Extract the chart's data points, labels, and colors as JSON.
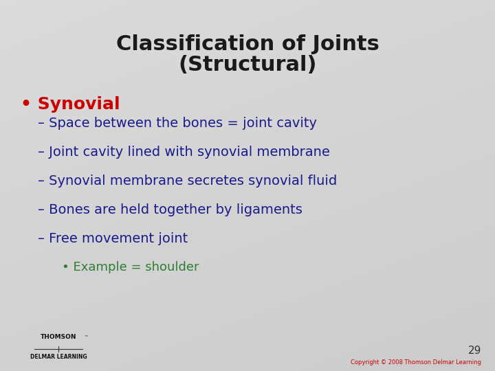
{
  "title_line1": "Classification of Joints",
  "title_line2": "(Structural)",
  "title_color": "#1a1a1a",
  "title_fontsize": 22,
  "background_color": "#d4d4d4",
  "bullet_main": "Synovial",
  "bullet_main_color": "#cc0000",
  "bullet_main_fontsize": 18,
  "sub_bullets": [
    "– Space between the bones = joint cavity",
    "– Joint cavity lined with synovial membrane",
    "– Synovial membrane secretes synovial fluid",
    "– Bones are held together by ligaments",
    "– Free movement joint"
  ],
  "sub_bullet_color": "#1a1a8c",
  "sub_bullet_fontsize": 14,
  "sub_sub_bullet": "• Example = shoulder",
  "sub_sub_color": "#2e7d32",
  "sub_sub_fontsize": 13,
  "page_number": "29",
  "page_number_color": "#333333",
  "copyright_text": "Copyright © 2008 Thomson Delmar Learning",
  "copyright_color": "#cc0000",
  "footer_brand_color": "#111111"
}
